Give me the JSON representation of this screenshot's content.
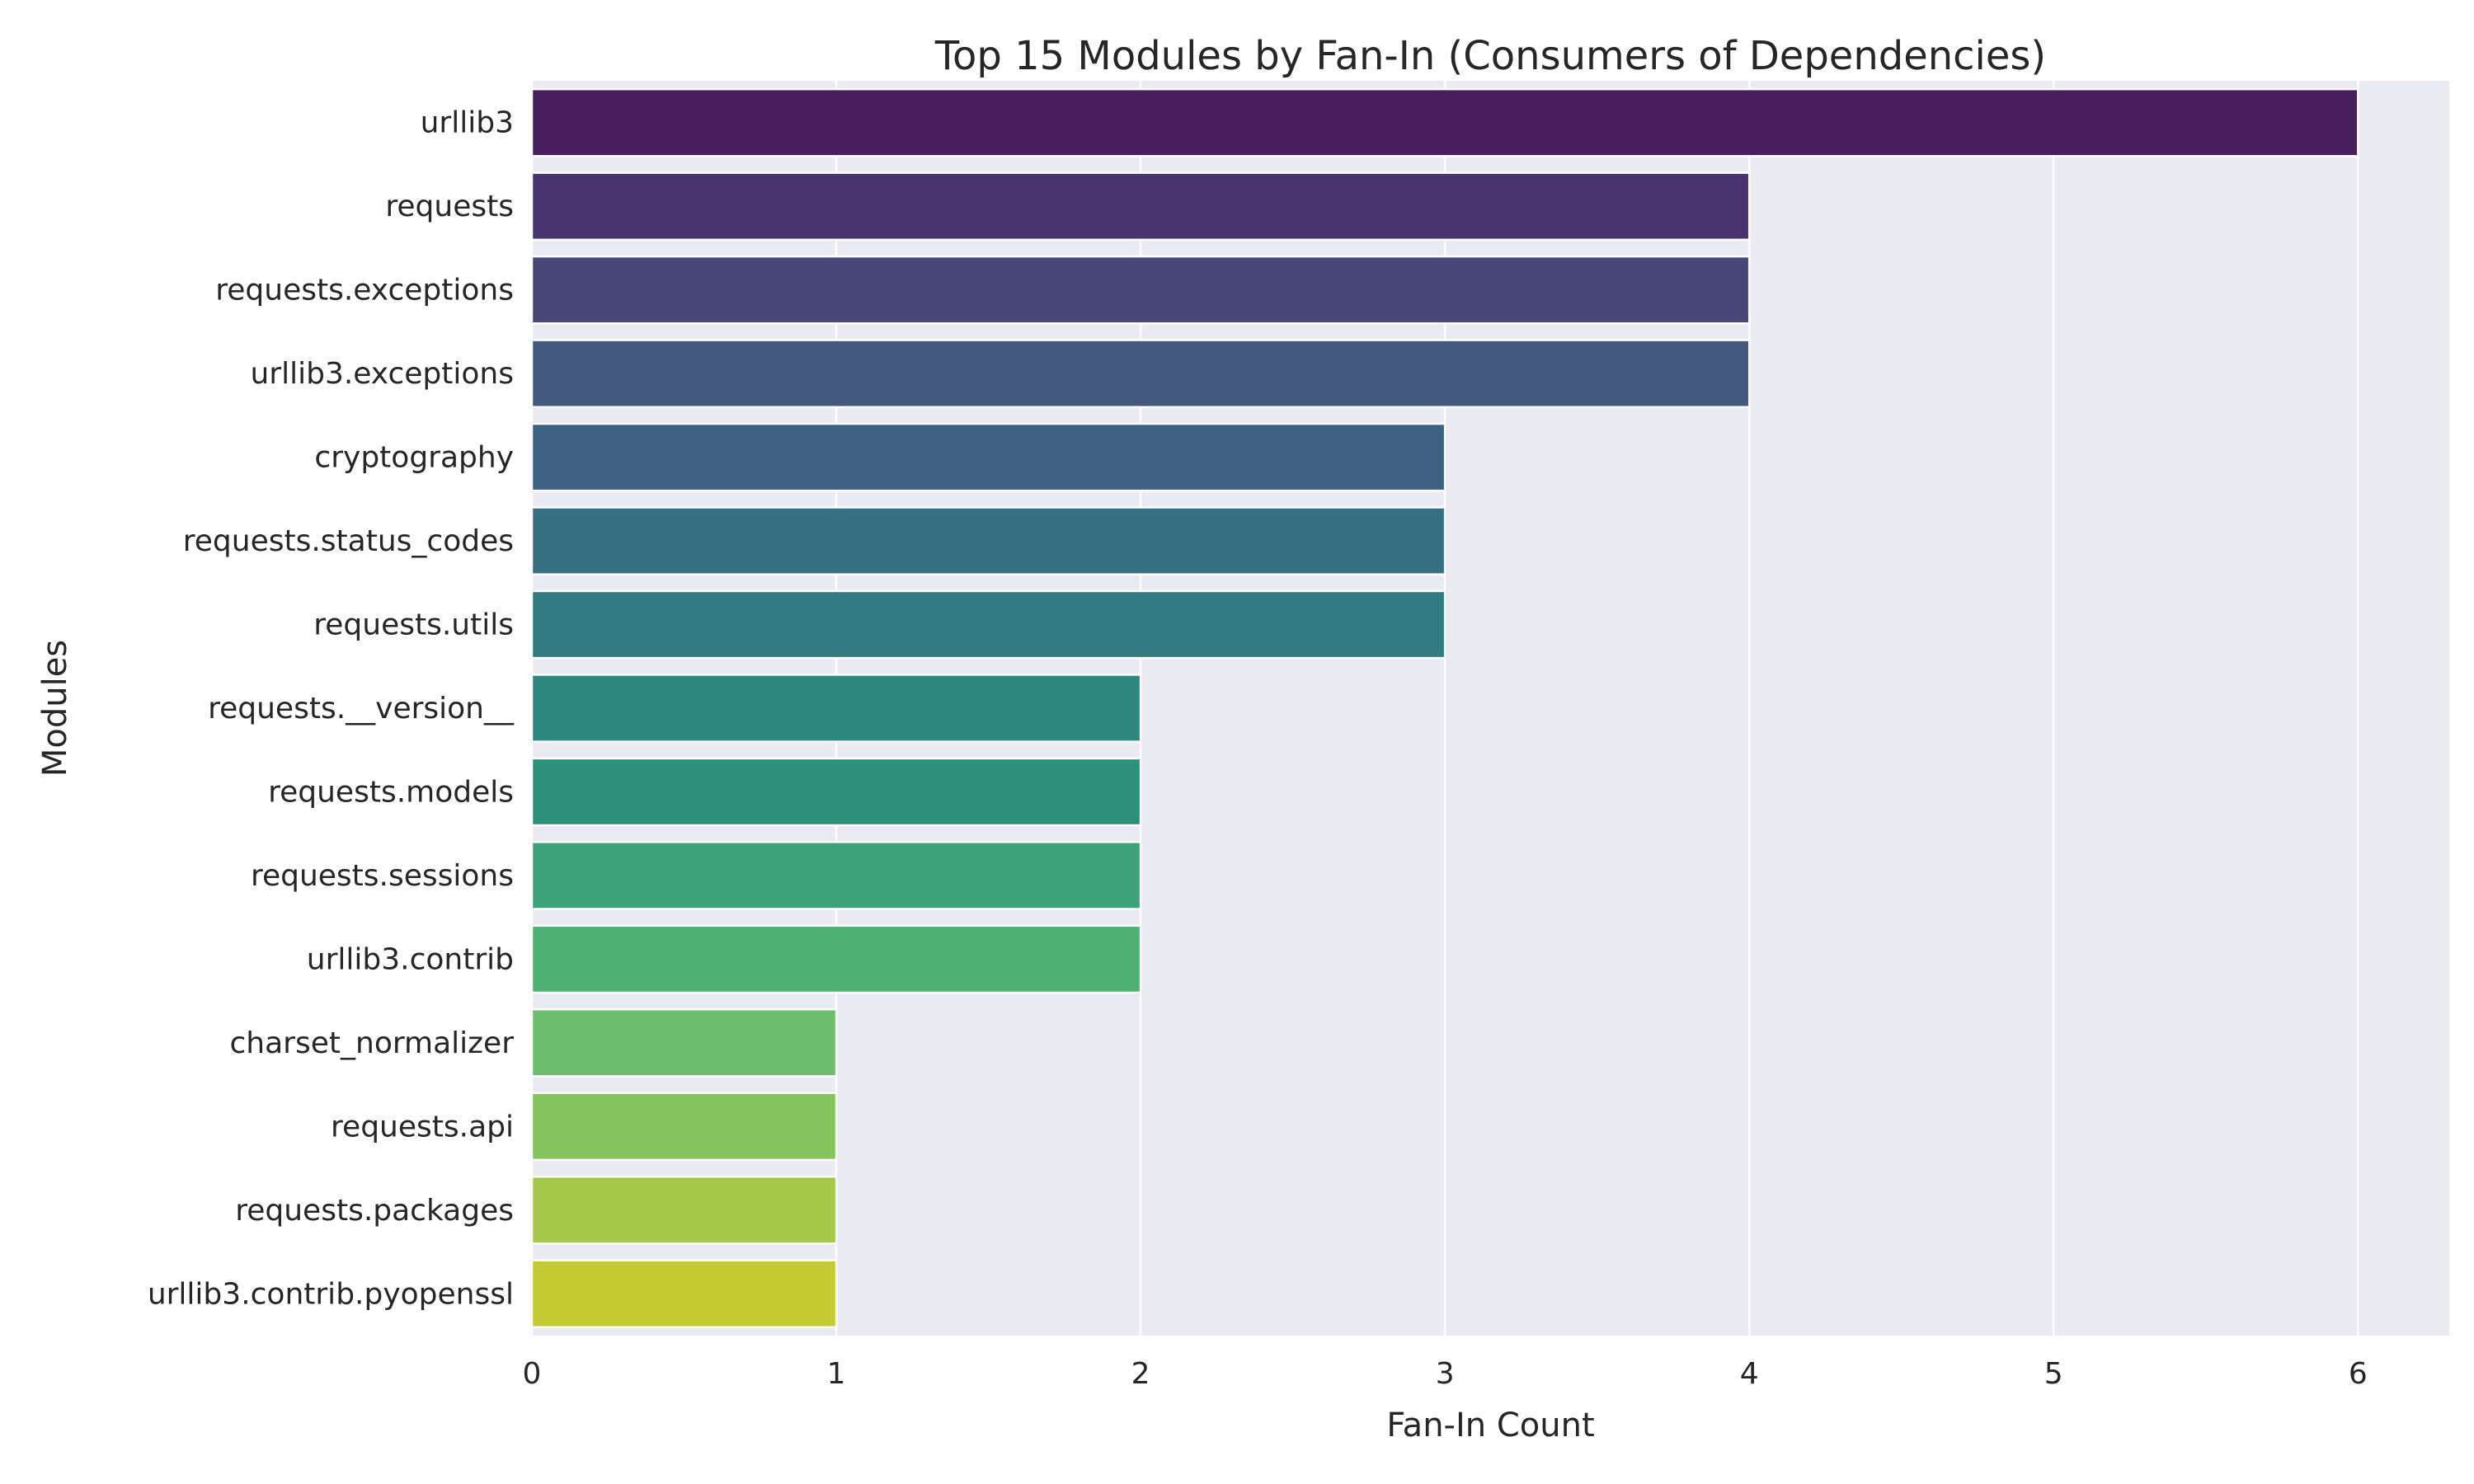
{
  "chart_data": {
    "type": "bar",
    "orientation": "horizontal",
    "title": "Top 15 Modules by Fan-In (Consumers of Dependencies)",
    "xlabel": "Fan-In Count",
    "ylabel": "Modules",
    "categories": [
      "urllib3",
      "requests",
      "requests.exceptions",
      "urllib3.exceptions",
      "cryptography",
      "requests.status_codes",
      "requests.utils",
      "requests.__version__",
      "requests.models",
      "requests.sessions",
      "urllib3.contrib",
      "charset_normalizer",
      "requests.api",
      "requests.packages",
      "urllib3.contrib.pyopenssl"
    ],
    "values": [
      6,
      4,
      4,
      4,
      3,
      3,
      3,
      2,
      2,
      2,
      2,
      1,
      1,
      1,
      1
    ],
    "colors": [
      "#471F5E",
      "#48326F",
      "#474676",
      "#44597E",
      "#3F6283",
      "#387083",
      "#327B80",
      "#2E877E",
      "#2D907A",
      "#3DA17A",
      "#4FB274",
      "#6BBF6C",
      "#86C45E",
      "#A5C84A",
      "#C3CC30"
    ],
    "xlim": [
      0,
      6.3
    ],
    "xticks": [
      "0",
      "1",
      "2",
      "3",
      "4",
      "5",
      "6"
    ],
    "grid": true,
    "legend": "none",
    "background": "#EAEAF2",
    "grid_color": "#FFFFFF"
  }
}
